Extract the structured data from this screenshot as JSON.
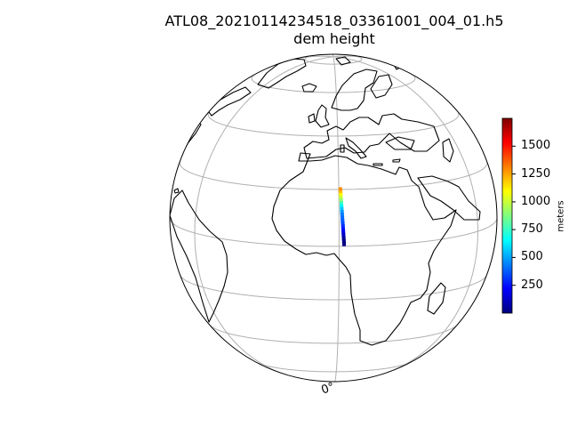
{
  "title": {
    "filename": "ATL08_20210114234518_03361001_004_01.h5",
    "variable": "dem height"
  },
  "map": {
    "projection": "orthographic",
    "center_lon": 0,
    "center_lat": 0,
    "gridlines": true,
    "coastlines": true,
    "lon_tick_labels": [
      "0°"
    ],
    "track_color_scale": "jet",
    "track": {
      "description_lon": 0.6,
      "points": [
        {
          "lat": 20.0,
          "value": 1300
        },
        {
          "lat": 19.0,
          "value": 1220
        },
        {
          "lat": 18.0,
          "value": 1100
        },
        {
          "lat": 17.0,
          "value": 1000
        },
        {
          "lat": 16.0,
          "value": 900
        },
        {
          "lat": 15.0,
          "value": 760
        },
        {
          "lat": 14.0,
          "value": 640
        },
        {
          "lat": 13.0,
          "value": 560
        },
        {
          "lat": 12.0,
          "value": 480
        },
        {
          "lat": 11.0,
          "value": 430
        },
        {
          "lat": 10.0,
          "value": 400
        },
        {
          "lat": 9.0,
          "value": 380
        },
        {
          "lat": 8.0,
          "value": 340
        },
        {
          "lat": 7.0,
          "value": 300
        },
        {
          "lat": 6.0,
          "value": 250
        },
        {
          "lat": 5.0,
          "value": 180
        },
        {
          "lat": 4.0,
          "value": 120
        },
        {
          "lat": 3.0,
          "value": 60
        },
        {
          "lat": 2.0,
          "value": 20
        },
        {
          "lat": 1.0,
          "value": 10
        }
      ]
    }
  },
  "colorbar": {
    "label": "meters",
    "colormap": "jet",
    "min": 0,
    "max": 1750,
    "ticks": [
      {
        "value": 250,
        "label": "250"
      },
      {
        "value": 500,
        "label": "500"
      },
      {
        "value": 750,
        "label": "750"
      },
      {
        "value": 1000,
        "label": "1000"
      },
      {
        "value": 1250,
        "label": "1250"
      },
      {
        "value": 1500,
        "label": "1500"
      }
    ]
  }
}
